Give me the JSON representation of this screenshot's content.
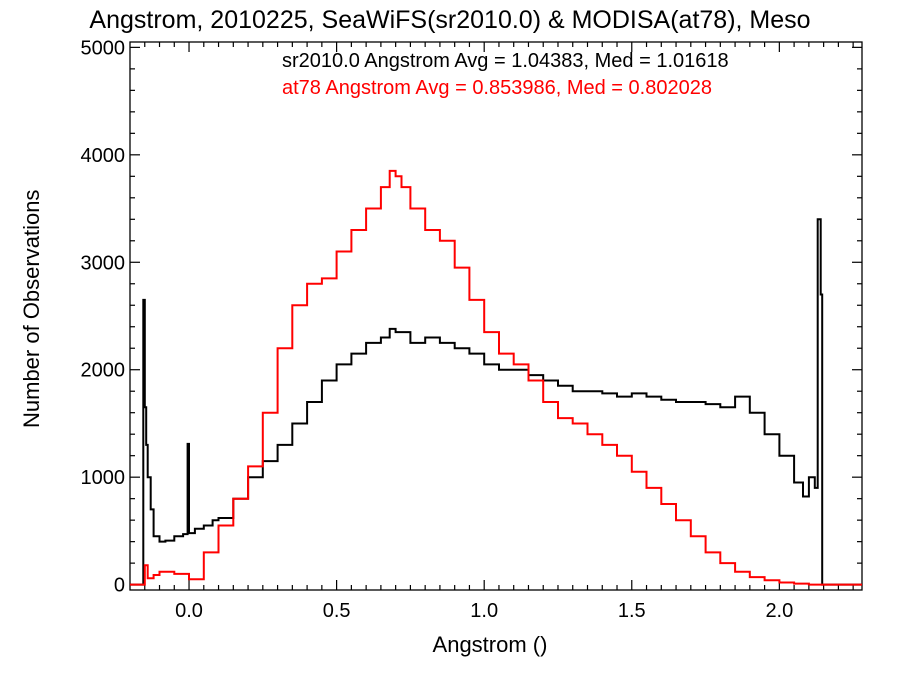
{
  "chart_data": {
    "type": "line",
    "title": "Angstrom, 2010225, SeaWiFS(sr2010.0) & MODISA(at78), Meso",
    "xlabel": "Angstrom ()",
    "ylabel": "Number of Observations",
    "xlim": [
      -0.2,
      2.28
    ],
    "ylim": [
      -50,
      5050
    ],
    "x_ticks": [
      "0.0",
      "0.5",
      "1.0",
      "1.5",
      "2.0"
    ],
    "x_tick_values": [
      0,
      0.5,
      1.0,
      1.5,
      2.0
    ],
    "y_ticks": [
      "0",
      "1000",
      "2000",
      "3000",
      "4000",
      "5000"
    ],
    "y_tick_values": [
      0,
      1000,
      2000,
      3000,
      4000,
      5000
    ],
    "grid": false,
    "annotations": [
      {
        "text": "sr2010.0 Angstrom Avg = 1.04383, Med = 1.01618",
        "color": "#000000"
      },
      {
        "text": "at78 Angstrom Avg = 0.853986, Med = 0.802028",
        "color": "#ff0000"
      }
    ],
    "series": [
      {
        "name": "sr2010.0",
        "color": "#000000",
        "x": [
          -0.2,
          -0.16,
          -0.155,
          -0.15,
          -0.145,
          -0.14,
          -0.13,
          -0.12,
          -0.1,
          -0.08,
          -0.05,
          -0.02,
          -0.005,
          0.0,
          0.005,
          0.02,
          0.05,
          0.08,
          0.1,
          0.15,
          0.2,
          0.25,
          0.3,
          0.35,
          0.4,
          0.45,
          0.5,
          0.55,
          0.6,
          0.65,
          0.68,
          0.7,
          0.75,
          0.8,
          0.85,
          0.9,
          0.95,
          1.0,
          1.05,
          1.1,
          1.15,
          1.2,
          1.25,
          1.3,
          1.35,
          1.4,
          1.45,
          1.5,
          1.55,
          1.6,
          1.65,
          1.7,
          1.75,
          1.8,
          1.85,
          1.9,
          1.95,
          2.0,
          2.05,
          2.08,
          2.1,
          2.12,
          2.13,
          2.14,
          2.145,
          2.15,
          2.155,
          2.28
        ],
        "y": [
          0,
          0,
          2650,
          1650,
          1300,
          1000,
          700,
          450,
          400,
          410,
          450,
          470,
          1310,
          480,
          480,
          520,
          550,
          600,
          620,
          800,
          1000,
          1150,
          1300,
          1500,
          1700,
          1900,
          2050,
          2150,
          2250,
          2300,
          2380,
          2350,
          2250,
          2300,
          2250,
          2200,
          2150,
          2050,
          2000,
          2000,
          1950,
          1900,
          1850,
          1800,
          1800,
          1780,
          1750,
          1780,
          1750,
          1720,
          1700,
          1700,
          1680,
          1650,
          1750,
          1600,
          1400,
          1200,
          950,
          820,
          1000,
          900,
          3400,
          2700,
          0,
          0,
          0,
          0
        ]
      },
      {
        "name": "at78",
        "color": "#ff0000",
        "x": [
          -0.2,
          -0.17,
          -0.15,
          -0.14,
          -0.12,
          -0.1,
          -0.05,
          0.0,
          0.05,
          0.1,
          0.15,
          0.2,
          0.25,
          0.3,
          0.35,
          0.4,
          0.45,
          0.5,
          0.55,
          0.6,
          0.65,
          0.68,
          0.7,
          0.72,
          0.75,
          0.8,
          0.85,
          0.9,
          0.95,
          1.0,
          1.05,
          1.1,
          1.15,
          1.2,
          1.25,
          1.3,
          1.35,
          1.4,
          1.45,
          1.5,
          1.55,
          1.6,
          1.65,
          1.7,
          1.75,
          1.8,
          1.85,
          1.9,
          1.95,
          2.0,
          2.05,
          2.1,
          2.15,
          2.2,
          2.28
        ],
        "y": [
          0,
          0,
          180,
          60,
          90,
          120,
          100,
          50,
          300,
          550,
          800,
          1100,
          1600,
          2200,
          2600,
          2800,
          2850,
          3100,
          3300,
          3500,
          3700,
          3850,
          3800,
          3700,
          3500,
          3300,
          3200,
          2950,
          2650,
          2350,
          2150,
          2050,
          1900,
          1700,
          1550,
          1500,
          1400,
          1300,
          1200,
          1050,
          900,
          750,
          600,
          450,
          300,
          200,
          120,
          70,
          40,
          20,
          10,
          0,
          0,
          0,
          0
        ]
      }
    ]
  }
}
